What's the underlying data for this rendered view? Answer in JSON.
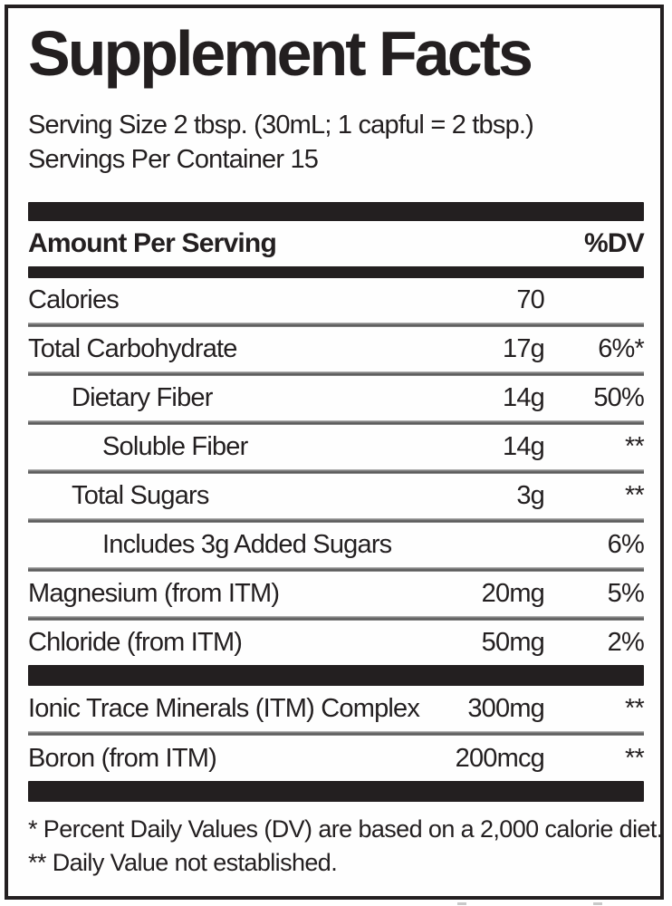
{
  "label": {
    "title": "Supplement Facts",
    "serving_size": "Serving Size 2 tbsp. (30mL; 1 capful = 2 tbsp.)",
    "servings_per_container": "Servings Per Container 15",
    "header": {
      "amount_per_serving": "Amount Per Serving",
      "dv": "%DV"
    },
    "rows": [
      {
        "name": "Calories",
        "amount": "70",
        "dv": "",
        "indent": "0"
      },
      {
        "name": "Total Carbohydrate",
        "amount": "17g",
        "dv": "6%*",
        "indent": "0"
      },
      {
        "name": "Dietary Fiber",
        "amount": "14g",
        "dv": "50%",
        "indent": "1"
      },
      {
        "name": "Soluble Fiber",
        "amount": "14g",
        "dv": "**",
        "indent": "2"
      },
      {
        "name": "Total Sugars",
        "amount": "3g",
        "dv": "**",
        "indent": "1"
      },
      {
        "name": "Includes 3g Added Sugars",
        "amount": "",
        "dv": "6%",
        "indent": "2"
      },
      {
        "name": "Magnesium (from ITM)",
        "amount": "20mg",
        "dv": "5%",
        "indent": "0"
      },
      {
        "name": "Chloride (from ITM)",
        "amount": "50mg",
        "dv": "2%",
        "indent": "0"
      }
    ],
    "mineral_rows": [
      {
        "name": "Ionic Trace Minerals (ITM) Complex",
        "amount": "300mg",
        "dv": "**"
      },
      {
        "name": "Boron (from ITM)",
        "amount": "200mcg",
        "dv": "**"
      }
    ],
    "footnotes": [
      "* Percent Daily Values (DV) are based on a 2,000 calorie diet.",
      "** Daily Value not established."
    ],
    "colors": {
      "text": "#231f20",
      "divider_bar": "#231f20",
      "row_separator": "#6f6f6f",
      "background": "#ffffff"
    }
  }
}
